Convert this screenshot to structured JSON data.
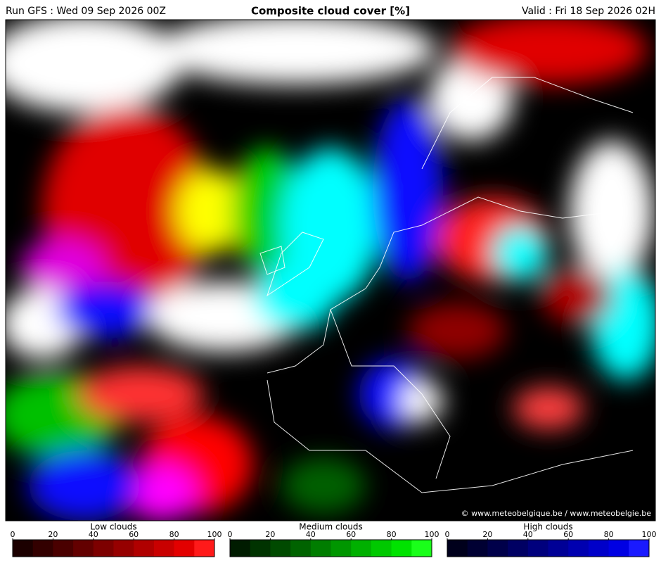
{
  "header": {
    "run": "Run GFS : Wed 09 Sep 2026 00Z",
    "title": "Composite cloud cover [%]",
    "valid": "Valid : Fri 18 Sep 2026 02H"
  },
  "credit": "© www.meteobelgique.be / www.meteobelgie.be",
  "legends": [
    {
      "label": "Low clouds",
      "ticks": [
        0,
        20,
        40,
        60,
        80,
        100
      ],
      "colors": [
        "#1c0000",
        "#330000",
        "#4a0000",
        "#630000",
        "#7d0000",
        "#960000",
        "#b00000",
        "#c90000",
        "#e30000",
        "#ff1a1a"
      ]
    },
    {
      "label": "Medium clouds",
      "ticks": [
        0,
        20,
        40,
        60,
        80,
        100
      ],
      "colors": [
        "#001c00",
        "#003300",
        "#004a00",
        "#006300",
        "#007d00",
        "#009600",
        "#00b000",
        "#00c900",
        "#00e300",
        "#1aff1a"
      ]
    },
    {
      "label": "High clouds",
      "ticks": [
        0,
        20,
        40,
        60,
        80,
        100
      ],
      "colors": [
        "#00001c",
        "#000033",
        "#00004a",
        "#000063",
        "#00007d",
        "#000096",
        "#0000b0",
        "#0000c9",
        "#0000e3",
        "#1a1aff"
      ]
    }
  ]
}
